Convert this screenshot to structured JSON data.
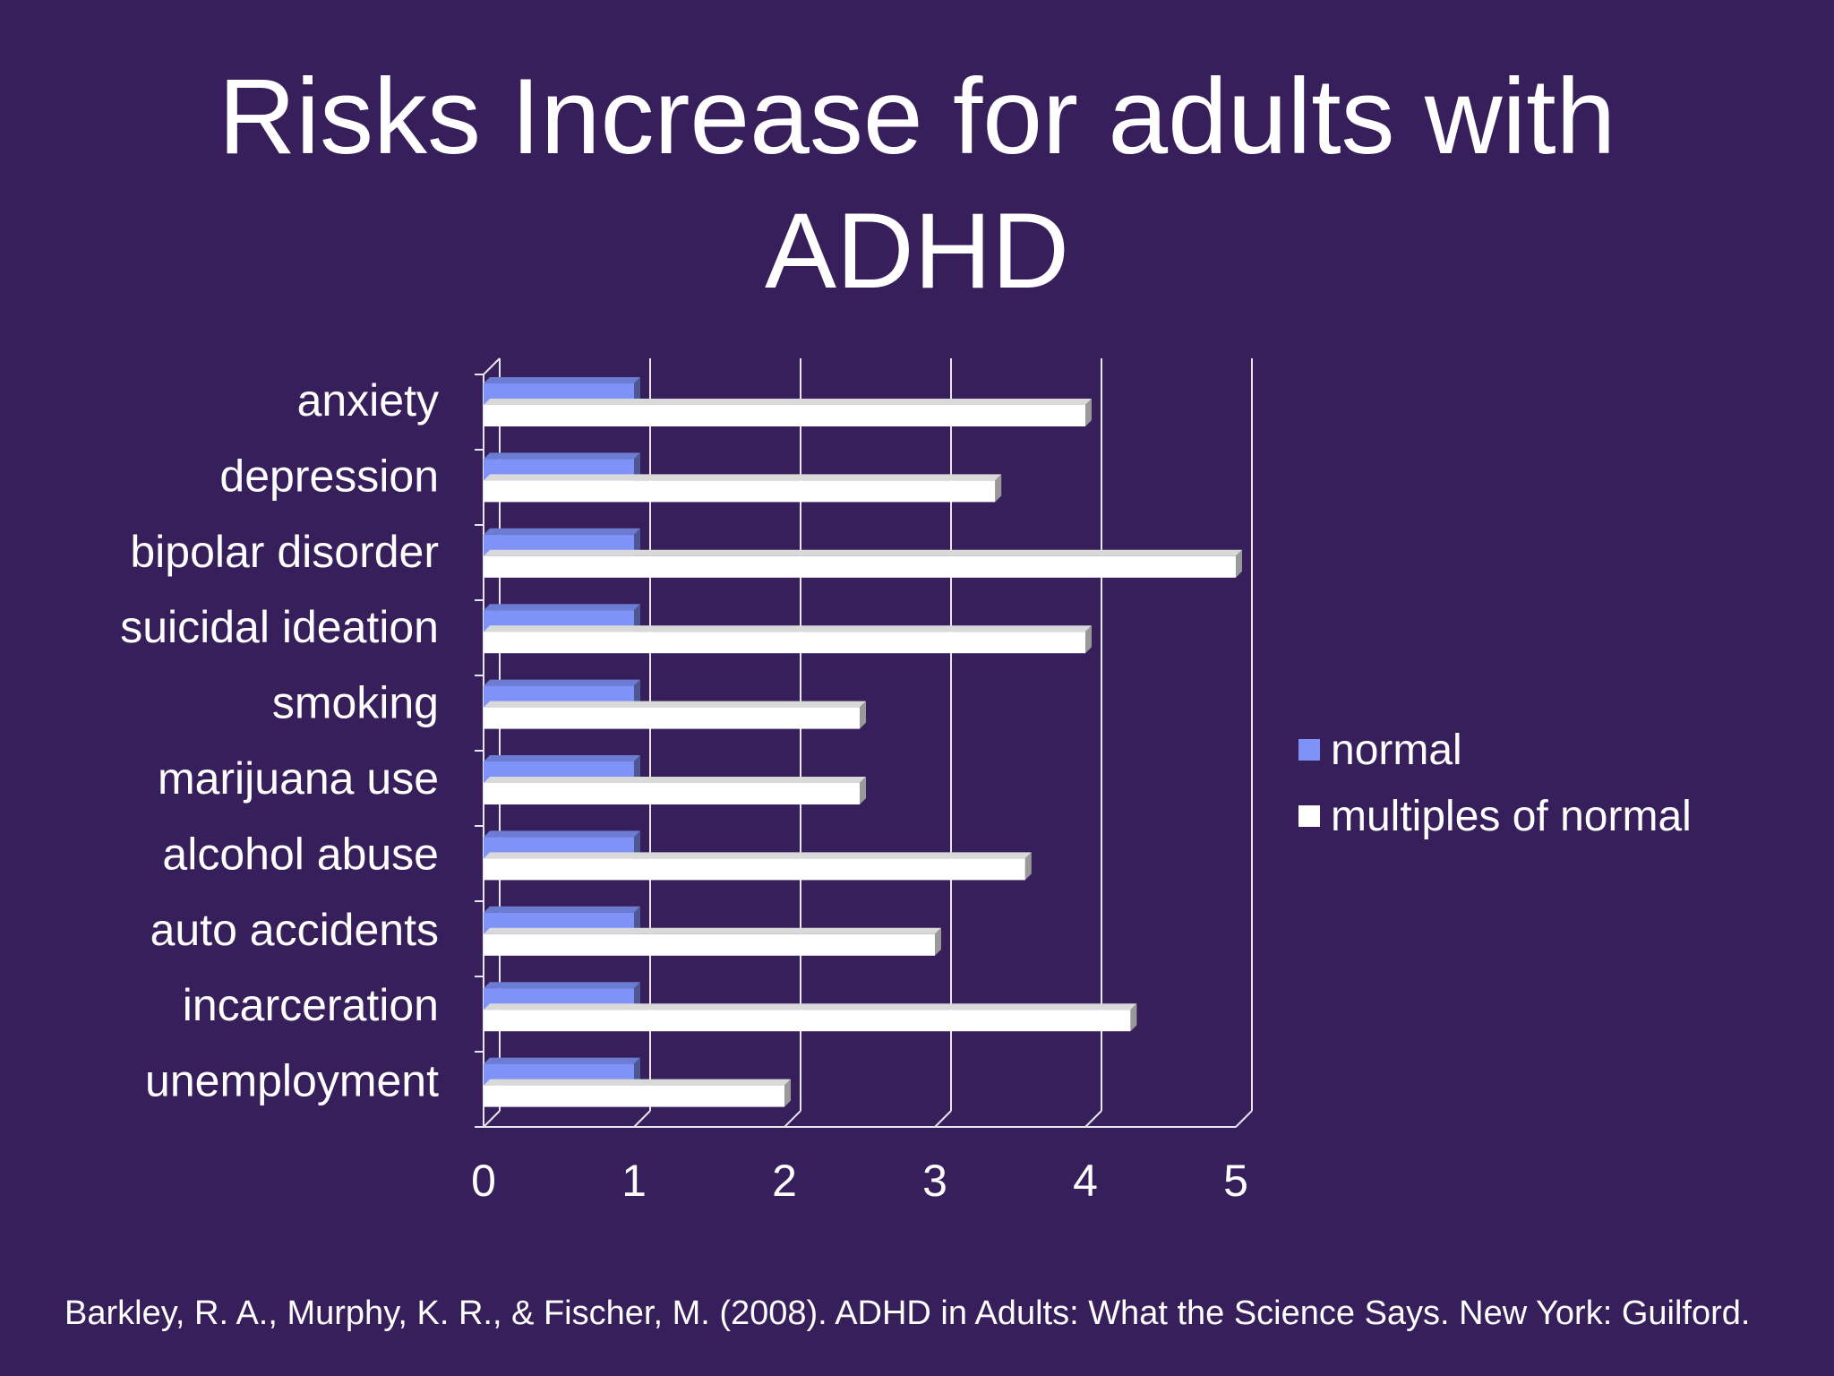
{
  "slide": {
    "title": "Risks Increase for adults with ADHD",
    "citation": "Barkley, R. A., Murphy, K. R., & Fischer, M. (2008).  ADHD in Adults: What the Science Says.  New York: Guilford."
  },
  "colors": {
    "background": "#371f5b",
    "normal": "#7f92f7",
    "multiples": "#ffffff",
    "axis": "#e6e6f0"
  },
  "chart_data": {
    "type": "bar",
    "orientation": "horizontal",
    "categories": [
      "anxiety",
      "depression",
      "bipolar disorder",
      "suicidal ideation",
      "smoking",
      "marijuana use",
      "alcohol abuse",
      "auto accidents",
      "incarceration",
      "unemployment"
    ],
    "series": [
      {
        "name": "normal",
        "values": [
          1,
          1,
          1,
          1,
          1,
          1,
          1,
          1,
          1,
          1
        ]
      },
      {
        "name": "multiples of normal",
        "values": [
          4,
          3.4,
          5,
          4,
          2.5,
          2.5,
          3.6,
          3,
          4.3,
          2
        ]
      }
    ],
    "xlim": [
      0,
      5
    ],
    "xticks": [
      "0",
      "1",
      "2",
      "3",
      "4",
      "5"
    ],
    "grid": true,
    "legend": "right",
    "title": "",
    "xlabel": "",
    "ylabel": ""
  }
}
